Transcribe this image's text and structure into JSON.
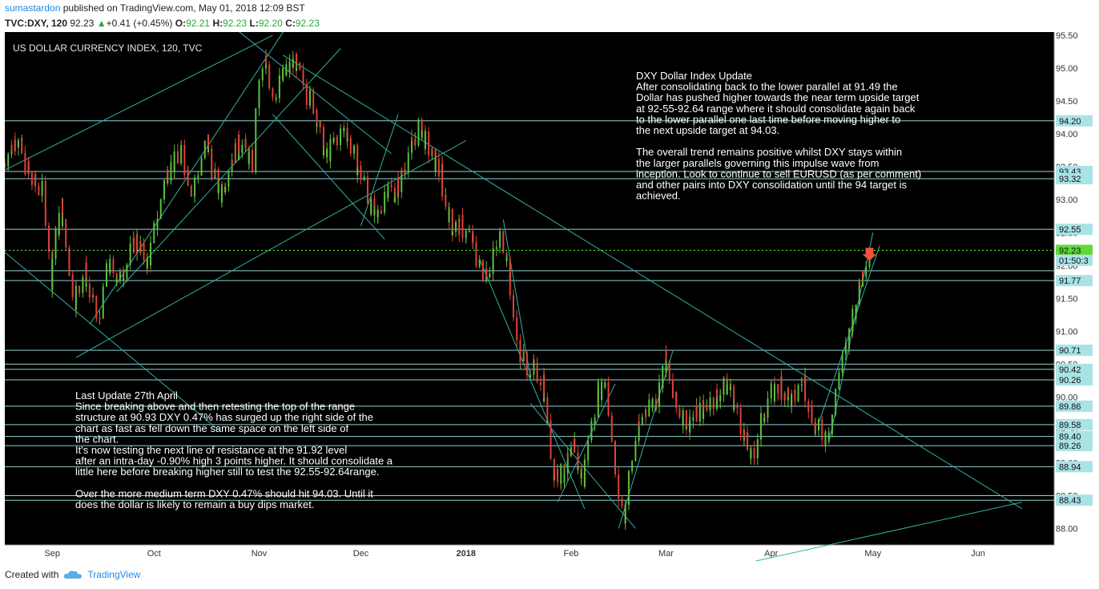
{
  "header": {
    "user": "sumastardon",
    "published_text": "published on TradingView.com, May 01, 2018 12:09 BST",
    "symbol": "TVC:DXY, 120",
    "price": "92.23",
    "change": "+0.41 (+0.45%)",
    "o_label": "O:",
    "o_value": "92.21",
    "h_label": "H:",
    "h_value": "92.23",
    "l_label": "L:",
    "l_value": "92.20",
    "c_label": "C:",
    "c_value": "92.23"
  },
  "footer": {
    "created_with": "Created with",
    "brand": "TradingView"
  },
  "colors": {
    "background": "#000000",
    "up": "#26a69a",
    "down": "#ef5350",
    "candle_up": "#59c240",
    "candle_down": "#e0413a",
    "trendline": "#35b0a0",
    "hline": "#8fd3d3",
    "price_line": "#6dff3a",
    "axis_bg": "#ffffff",
    "label_bg": "#a9e3e6"
  },
  "chart_data": {
    "type": "candlestick",
    "title": "US DOLLAR CURRENCY INDEX, 120, TVC",
    "ylim": [
      87.75,
      95.55
    ],
    "y_ticks": [
      "95.50",
      "95.00",
      "94.50",
      "94.00",
      "93.50",
      "93.00",
      "92.50",
      "92.00",
      "91.50",
      "91.00",
      "90.50",
      "90.00",
      "89.50",
      "89.00",
      "88.50",
      "88.00"
    ],
    "x_ticks": [
      "Sep",
      "Oct",
      "Nov",
      "Dec",
      "2018",
      "Feb",
      "Mar",
      "Apr",
      "May",
      "Jun"
    ],
    "last_price": "92.23",
    "arrow_label": "01:50:3",
    "levels": [
      "94.20",
      "93.43",
      "93.32",
      "92.55",
      "91.92",
      "91.77",
      "90.71",
      "90.50",
      "90.42",
      "90.26",
      "89.86",
      "89.58",
      "89.40",
      "89.26",
      "88.94",
      "88.50",
      "88.43"
    ],
    "level_labels": [
      "94.20",
      "93.43",
      "93.32",
      "92.55",
      "91.77",
      "90.71",
      "90.42",
      "90.26",
      "89.86",
      "89.58",
      "89.40",
      "89.26",
      "88.94",
      "88.43"
    ],
    "price_path": [
      {
        "date": "2017-08-18",
        "close": 93.5
      },
      {
        "date": "2017-08-22",
        "close": 94.0
      },
      {
        "date": "2017-08-26",
        "close": 93.3
      },
      {
        "date": "2017-08-30",
        "close": 93.1
      },
      {
        "date": "2017-09-01",
        "close": 91.8
      },
      {
        "date": "2017-09-04",
        "close": 92.9
      },
      {
        "date": "2017-09-08",
        "close": 91.5
      },
      {
        "date": "2017-09-11",
        "close": 91.9
      },
      {
        "date": "2017-09-15",
        "close": 91.1
      },
      {
        "date": "2017-09-18",
        "close": 92.0
      },
      {
        "date": "2017-09-22",
        "close": 91.8
      },
      {
        "date": "2017-09-26",
        "close": 92.4
      },
      {
        "date": "2017-09-30",
        "close": 92.0
      },
      {
        "date": "2017-10-05",
        "close": 93.4
      },
      {
        "date": "2017-10-10",
        "close": 93.7
      },
      {
        "date": "2017-10-13",
        "close": 93.1
      },
      {
        "date": "2017-10-17",
        "close": 93.9
      },
      {
        "date": "2017-10-21",
        "close": 93.0
      },
      {
        "date": "2017-10-24",
        "close": 93.6
      },
      {
        "date": "2017-10-27",
        "close": 93.9
      },
      {
        "date": "2017-10-31",
        "close": 93.5
      },
      {
        "date": "2017-11-01",
        "close": 94.6
      },
      {
        "date": "2017-11-03",
        "close": 95.1
      },
      {
        "date": "2017-11-06",
        "close": 94.6
      },
      {
        "date": "2017-11-09",
        "close": 94.9
      },
      {
        "date": "2017-11-12",
        "close": 95.1
      },
      {
        "date": "2017-11-15",
        "close": 94.7
      },
      {
        "date": "2017-11-18",
        "close": 94.4
      },
      {
        "date": "2017-11-21",
        "close": 93.6
      },
      {
        "date": "2017-11-24",
        "close": 93.9
      },
      {
        "date": "2017-11-27",
        "close": 94.1
      },
      {
        "date": "2017-11-30",
        "close": 93.6
      },
      {
        "date": "2017-12-03",
        "close": 93.2
      },
      {
        "date": "2017-12-06",
        "close": 92.6
      },
      {
        "date": "2017-12-09",
        "close": 93.2
      },
      {
        "date": "2017-12-12",
        "close": 93.1
      },
      {
        "date": "2017-12-16",
        "close": 93.8
      },
      {
        "date": "2017-12-19",
        "close": 94.1
      },
      {
        "date": "2017-12-22",
        "close": 93.7
      },
      {
        "date": "2017-12-25",
        "close": 93.4
      },
      {
        "date": "2017-12-28",
        "close": 92.6
      },
      {
        "date": "2017-12-31",
        "close": 92.6
      },
      {
        "date": "2018-01-03",
        "close": 92.4
      },
      {
        "date": "2018-01-06",
        "close": 91.9
      },
      {
        "date": "2018-01-09",
        "close": 92.0
      },
      {
        "date": "2018-01-12",
        "close": 92.5
      },
      {
        "date": "2018-01-14",
        "close": 91.9
      },
      {
        "date": "2018-01-17",
        "close": 90.7
      },
      {
        "date": "2018-01-21",
        "close": 90.4
      },
      {
        "date": "2018-01-24",
        "close": 90.3
      },
      {
        "date": "2018-01-27",
        "close": 88.9
      },
      {
        "date": "2018-01-30",
        "close": 88.8
      },
      {
        "date": "2018-02-02",
        "close": 89.2
      },
      {
        "date": "2018-02-05",
        "close": 88.7
      },
      {
        "date": "2018-02-09",
        "close": 90.0
      },
      {
        "date": "2018-02-12",
        "close": 90.3
      },
      {
        "date": "2018-02-15",
        "close": 88.6
      },
      {
        "date": "2018-02-17",
        "close": 88.2
      },
      {
        "date": "2018-02-20",
        "close": 89.2
      },
      {
        "date": "2018-02-23",
        "close": 89.8
      },
      {
        "date": "2018-02-27",
        "close": 90.0
      },
      {
        "date": "2018-03-01",
        "close": 90.6
      },
      {
        "date": "2018-03-04",
        "close": 89.9
      },
      {
        "date": "2018-03-08",
        "close": 89.6
      },
      {
        "date": "2018-03-12",
        "close": 89.8
      },
      {
        "date": "2018-03-16",
        "close": 90.0
      },
      {
        "date": "2018-03-20",
        "close": 90.2
      },
      {
        "date": "2018-03-24",
        "close": 89.5
      },
      {
        "date": "2018-03-27",
        "close": 89.0
      },
      {
        "date": "2018-03-31",
        "close": 89.9
      },
      {
        "date": "2018-04-04",
        "close": 90.2
      },
      {
        "date": "2018-04-08",
        "close": 89.9
      },
      {
        "date": "2018-04-11",
        "close": 90.3
      },
      {
        "date": "2018-04-14",
        "close": 89.6
      },
      {
        "date": "2018-04-17",
        "close": 89.4
      },
      {
        "date": "2018-04-19",
        "close": 89.6
      },
      {
        "date": "2018-04-21",
        "close": 90.2
      },
      {
        "date": "2018-04-24",
        "close": 90.8
      },
      {
        "date": "2018-04-27",
        "close": 91.6
      },
      {
        "date": "2018-04-30",
        "close": 92.23
      }
    ],
    "annotations": [
      {
        "id": "dxy-update",
        "lines": [
          "DXY Dollar Index Update",
          "After consolidating back to the lower parallel at 91.49 the",
          "Dollar has pushed higher towards the near term upside target",
          "at 92-55-92.64 range where it should consolidate again back",
          "to the lower parallel one last time before moving higher to",
          "the next upside target at 94.03.",
          "",
          "The overall trend remains positive whilst DXY stays within",
          "the larger parallels governing this impulse wave from",
          "inception. Look to continue to sell EURUSD (as per comment)",
          "and other pairs into DXY consolidation until the 94 target is",
          "achieved."
        ]
      },
      {
        "id": "last-update",
        "lines": [
          "Last Update   27th April",
          "Since breaking above and then retesting the top of the range",
          "structure at 90.93 DXY 0.47% has surged up the right side of the",
          "chart as fast as fell down the same space on the left side of",
          "the chart.",
          "It's now testing the next line of resistance at the 91.92 level",
          "after an intra-day -0.90% high 3 points higher. It should consolidate a",
          "little here before breaking higher still to test the 92.55-92.64range.",
          "",
          "Over the more medium term DXY 0.47% should hit 94.03. Until it",
          "does the dollar is likely to remain a buy dips market."
        ]
      }
    ]
  }
}
